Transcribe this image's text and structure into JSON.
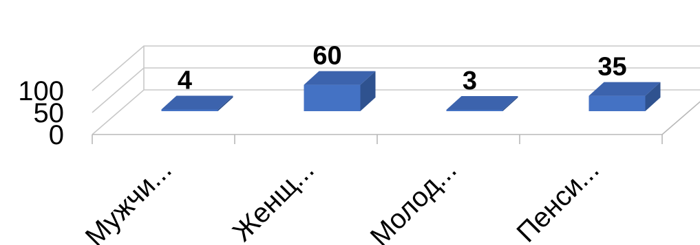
{
  "chart_data": {
    "type": "bar",
    "style": "3d-column",
    "categories": [
      "Мужчи...",
      "Женщ...",
      "Молод...",
      "Пенси..."
    ],
    "values": [
      4,
      60,
      3,
      35
    ],
    "data_labels": [
      "4",
      "60",
      "3",
      "35"
    ],
    "title": "",
    "xlabel": "",
    "ylabel": "",
    "ylim": [
      0,
      100
    ],
    "yticks": [
      "0",
      "50",
      "100"
    ],
    "grid": true,
    "legend": "none",
    "colors": {
      "bar_front": "#4472c4",
      "bar_side": "#2f528f",
      "bar_top": "#3c63ad",
      "grid": "#c8c8c8"
    }
  }
}
